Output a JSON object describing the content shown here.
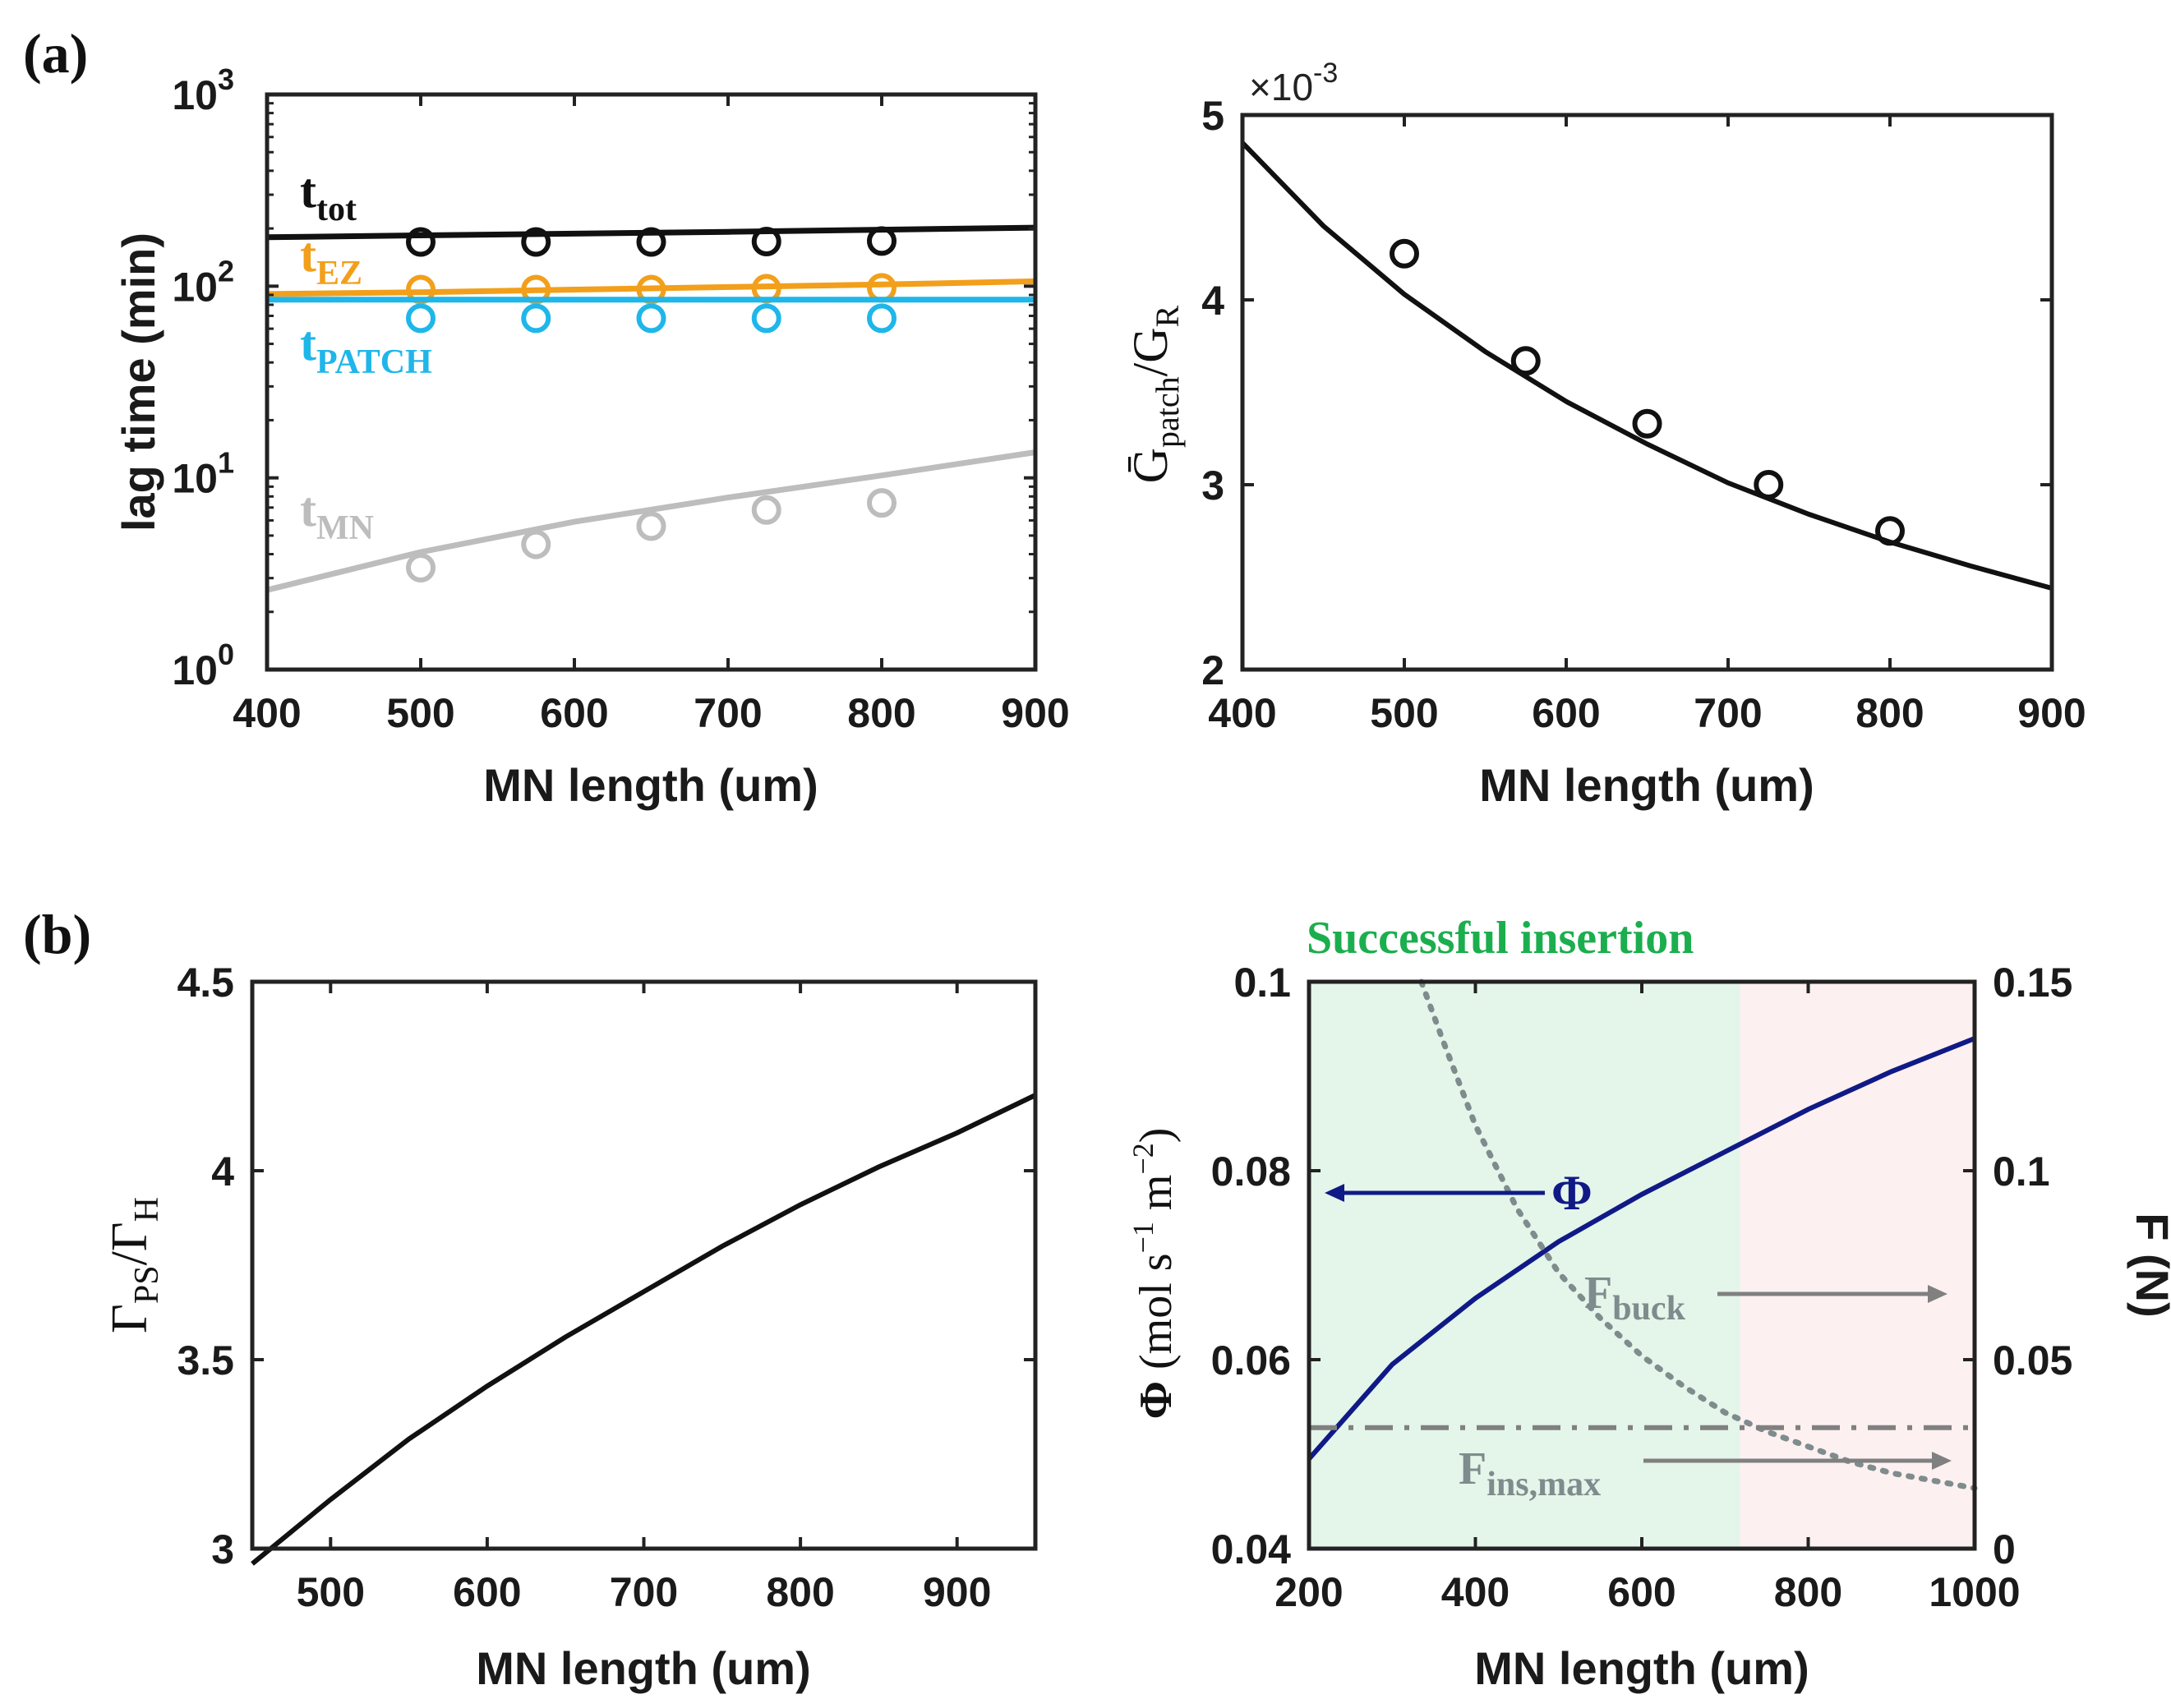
{
  "panel_labels": {
    "a": "(a)",
    "b": "(b)"
  },
  "colors": {
    "black": "#111111",
    "orange": "#f29f1b",
    "cyan": "#1fb6ea",
    "gray": "#bdbdbd",
    "navy": "#101a86",
    "dotgray": "#7f8c8d",
    "green": "#1cae4e",
    "green_region": "#e4f5ea",
    "red_region": "#fdf0f0",
    "arrow_gray": "#808080"
  },
  "chart_data": [
    {
      "id": "a1",
      "type": "line",
      "xlabel": "MN length (um)",
      "ylabel": "lag time (min)",
      "xlim": [
        400,
        900
      ],
      "ylim": [
        1,
        1000
      ],
      "yscale": "log",
      "xticks": [
        "400",
        "500",
        "600",
        "700",
        "800",
        "900"
      ],
      "yticks": [
        {
          "base": "10",
          "exp": "0"
        },
        {
          "base": "10",
          "exp": "1"
        },
        {
          "base": "10",
          "exp": "2"
        },
        {
          "base": "10",
          "exp": "3"
        }
      ],
      "series": [
        {
          "name": "tot",
          "label_main": "t",
          "label_sub": "tot",
          "color": "#111111",
          "line": {
            "x": [
              400,
              500,
              600,
              700,
              800,
              900
            ],
            "y": [
              180,
              184,
              188,
              192,
              197,
              202
            ]
          },
          "points": {
            "x": [
              500,
              575,
              650,
              725,
              800
            ],
            "y": [
              170,
              170,
              170,
              171,
              172
            ]
          }
        },
        {
          "name": "EZ",
          "label_main": "t",
          "label_sub": "EZ",
          "color": "#f29f1b",
          "line": {
            "x": [
              400,
              500,
              600,
              700,
              800,
              900
            ],
            "y": [
              91,
              93,
              96,
              99,
              102,
              106
            ]
          },
          "points": {
            "x": [
              500,
              575,
              650,
              725,
              800
            ],
            "y": [
              96,
              96,
              96,
              97,
              98
            ]
          }
        },
        {
          "name": "PATCH",
          "label_main": "t",
          "label_sub": "PATCH",
          "color": "#1fb6ea",
          "line": {
            "x": [
              400,
              900
            ],
            "y": [
              85,
              85
            ]
          },
          "points": {
            "x": [
              500,
              575,
              650,
              725,
              800
            ],
            "y": [
              68,
              68,
              68,
              68,
              68
            ]
          }
        },
        {
          "name": "MN",
          "label_main": "t",
          "label_sub": "MN",
          "color": "#bdbdbd",
          "line": {
            "x": [
              400,
              500,
              600,
              700,
              800,
              900
            ],
            "y": [
              2.6,
              4.1,
              5.9,
              7.9,
              10.3,
              13.6
            ]
          },
          "points": {
            "x": [
              500,
              575,
              650,
              725,
              800
            ],
            "y": [
              3.4,
              4.5,
              5.6,
              6.8,
              7.4
            ]
          }
        }
      ]
    },
    {
      "id": "a2",
      "type": "line",
      "xlabel": "MN length (um)",
      "ylabel_main": "Ḡ",
      "ylabel_sub1": "patch",
      "ylabel_mid": "/G",
      "ylabel_sub2": "R",
      "exponent_label": "×10",
      "exponent_value": "-3",
      "xlim": [
        400,
        900
      ],
      "ylim": [
        2,
        5
      ],
      "xticks": [
        "400",
        "500",
        "600",
        "700",
        "800",
        "900"
      ],
      "yticks": [
        "2",
        "3",
        "4",
        "5"
      ],
      "series": [
        {
          "name": "fit",
          "color": "#111111",
          "line": {
            "x": [
              400,
              450,
              500,
              550,
              600,
              650,
              700,
              750,
              800,
              850,
              900
            ],
            "y": [
              4.85,
              4.4,
              4.03,
              3.72,
              3.45,
              3.22,
              3.01,
              2.84,
              2.69,
              2.56,
              2.44
            ]
          },
          "points": {
            "x": [
              500,
              575,
              650,
              725,
              800
            ],
            "y": [
              4.25,
              3.67,
              3.33,
              3.0,
              2.75
            ]
          }
        }
      ]
    },
    {
      "id": "b1",
      "type": "line",
      "xlabel": "MN length (um)",
      "ylabel_main": "Γ",
      "ylabel_sub1": "PS",
      "ylabel_mid": "/Γ",
      "ylabel_sub2": "H",
      "xlim": [
        450,
        950
      ],
      "ylim": [
        3,
        4.5
      ],
      "xticks": [
        "500",
        "600",
        "700",
        "800",
        "900"
      ],
      "xtick_values": [
        500,
        600,
        700,
        800,
        900
      ],
      "yticks": [
        "3",
        "3.5",
        "4",
        "4.5"
      ],
      "ytick_values": [
        3,
        3.5,
        4,
        4.5
      ],
      "series": [
        {
          "name": "ratio",
          "color": "#111111",
          "line": {
            "x": [
              450,
              500,
              550,
              600,
              650,
              700,
              750,
              800,
              850,
              900,
              950
            ],
            "y": [
              2.96,
              3.13,
              3.29,
              3.43,
              3.56,
              3.68,
              3.8,
              3.91,
              4.01,
              4.1,
              4.2
            ]
          }
        }
      ]
    },
    {
      "id": "b2",
      "type": "line",
      "title": "Successful insertion",
      "xlabel": "MN length (um)",
      "ylabel_main": "Φ",
      "ylabel_units": "(mol s",
      "ylabel_exp1": "−1",
      "ylabel_units2": " m",
      "ylabel_exp2": "−2",
      "ylabel_close": ")",
      "y2label": "F (N)",
      "xlim": [
        200,
        1000
      ],
      "ylim": [
        0.04,
        0.1
      ],
      "y2lim": [
        0,
        0.15
      ],
      "xticks": [
        "200",
        "400",
        "600",
        "800",
        "1000"
      ],
      "xtick_values": [
        200,
        400,
        600,
        800,
        1000
      ],
      "yticks": [
        "0.04",
        "0.06",
        "0.08",
        "0.1"
      ],
      "ytick_values": [
        0.04,
        0.06,
        0.08,
        0.1
      ],
      "y2ticks": [
        "0",
        "0.05",
        "0.1",
        "0.15"
      ],
      "y2tick_values": [
        0,
        0.05,
        0.1,
        0.15
      ],
      "success_region": [
        200,
        718
      ],
      "series": [
        {
          "name": "Phi",
          "label": "Φ",
          "axis": "left",
          "color": "#101a86",
          "style": "solid",
          "x": [
            200,
            300,
            400,
            500,
            600,
            700,
            800,
            900,
            1000
          ],
          "y": [
            0.0495,
            0.0595,
            0.0665,
            0.0725,
            0.0775,
            0.082,
            0.0865,
            0.0905,
            0.094
          ]
        },
        {
          "name": "F_buck",
          "label_main": "F",
          "label_sub": "buck",
          "axis": "right",
          "color": "#7f8c8d",
          "style": "dotted",
          "x": [
            335,
            360,
            400,
            450,
            500,
            550,
            600,
            650,
            700,
            750,
            800,
            850,
            900,
            950,
            1000
          ],
          "y": [
            0.15,
            0.135,
            0.112,
            0.09,
            0.073,
            0.061,
            0.051,
            0.043,
            0.036,
            0.031,
            0.027,
            0.023,
            0.02,
            0.018,
            0.016
          ]
        },
        {
          "name": "F_ins_max",
          "label_main": "F",
          "label_sub": "ins,max",
          "axis": "right",
          "color": "#808080",
          "style": "dashdot",
          "x": [
            200,
            1000
          ],
          "y": [
            0.032,
            0.032
          ]
        }
      ]
    }
  ]
}
